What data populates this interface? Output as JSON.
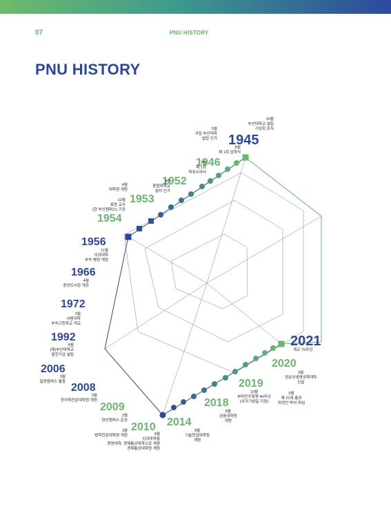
{
  "header": {
    "page_number": "07",
    "running_head": "PNU HISTORY",
    "title": "PNU HISTORY"
  },
  "colors": {
    "green": "#66b96a",
    "blue": "#2b46a0",
    "teal": "#3f8f88"
  },
  "timeline": [
    {
      "year": "1945",
      "events": "10월\n부산대학교 설립\n기성회 조직",
      "extra": "5월\n국립 부산대학\n설립 인가"
    },
    {
      "year": "1946",
      "events": "8월\n제 1회 입학식",
      "extra": "3월\n제 1회\n학위수여식"
    },
    {
      "year": "1952",
      "events": "9월\n종합대학교\n설치 인가",
      "extra": ""
    },
    {
      "year": "1953",
      "events": "4월\n대학원 개원",
      "extra": ""
    },
    {
      "year": "1954",
      "events": "12월\n효원 교사\n(현 부산캠퍼스) 기공",
      "extra": ""
    },
    {
      "year": "1956",
      "events": "11월\n의과대학\n부속 병원 개원",
      "extra": ""
    },
    {
      "year": "1966",
      "events": "4월\n중앙도서관 개관",
      "extra": ""
    },
    {
      "year": "1972",
      "events": "3월\n사범대학\n부속고등학교 개교",
      "extra": ""
    },
    {
      "year": "1992",
      "events": "4월\n(재)부산대학교\n발전기금 설립",
      "extra": ""
    },
    {
      "year": "2006",
      "events": "3월\n밀양캠퍼스 통합",
      "extra": ""
    },
    {
      "year": "2008",
      "events": "3월\n한의학전문대학원 개원",
      "extra": ""
    },
    {
      "year": "2009",
      "events": "2월\n양산캠퍼스 준공",
      "extra": "3월\n법학전문대학원 개원"
    },
    {
      "year": "2010",
      "events": "9월\n상과대학을\n경영대학, 경제통상대학으로 개편\n경제통상대학원 개원",
      "extra": ""
    },
    {
      "year": "2014",
      "events": "9월\n기술창업대학원\n개원",
      "extra": ""
    },
    {
      "year": "2018",
      "events": "8월\n금융대학원\n개원",
      "extra": ""
    },
    {
      "year": "2019",
      "events": "10월\n부마민주항쟁 40주년\n(국가기념일 지정)",
      "extra": "5월\n제 21대 총장\n차정인 박사 취임"
    },
    {
      "year": "2020",
      "events": "3월\n정보의생명공학대학\n신설",
      "extra": ""
    },
    {
      "year": "2021",
      "events": "개교 75주년",
      "extra": ""
    }
  ]
}
